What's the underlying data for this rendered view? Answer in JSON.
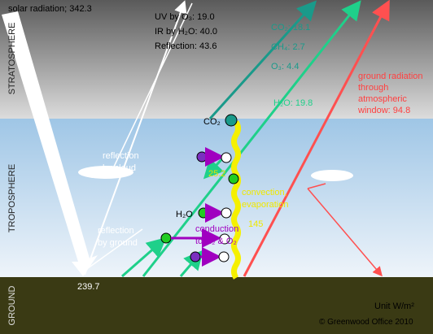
{
  "layers": {
    "stratosphere": "STRATOSPHERE",
    "troposphere": "TROPOSPHERE",
    "ground": "GROUND"
  },
  "solar": "solar radiation; 342.3",
  "absorption": [
    "UV by O₃:  19.0",
    "IR by H₂O: 40.0",
    "Reflection: 43.6"
  ],
  "greenhouse": [
    "CO₂: 18.1",
    "CH₄:  2.7",
    "O₃:   4.4",
    "H₂O: 19.8"
  ],
  "window": [
    "ground radiation",
    "through",
    "atmospheric",
    "window: 94.8"
  ],
  "co2_label": "CO₂",
  "reflection_by_cloud": [
    "reflection",
    "by cloud"
  ],
  "latent_value": "25.2",
  "convection": [
    "convection,",
    "evaporation"
  ],
  "convection_value": "145",
  "h2o_label": "H₂O",
  "conduction": [
    "conduction",
    "to N₂ & O₂"
  ],
  "reflection_by_ground": [
    "reflection",
    "by ground"
  ],
  "ground_absorbed": "239.7",
  "unit": "Unit W/m²",
  "credit": "© Greenwood Office 2010"
}
